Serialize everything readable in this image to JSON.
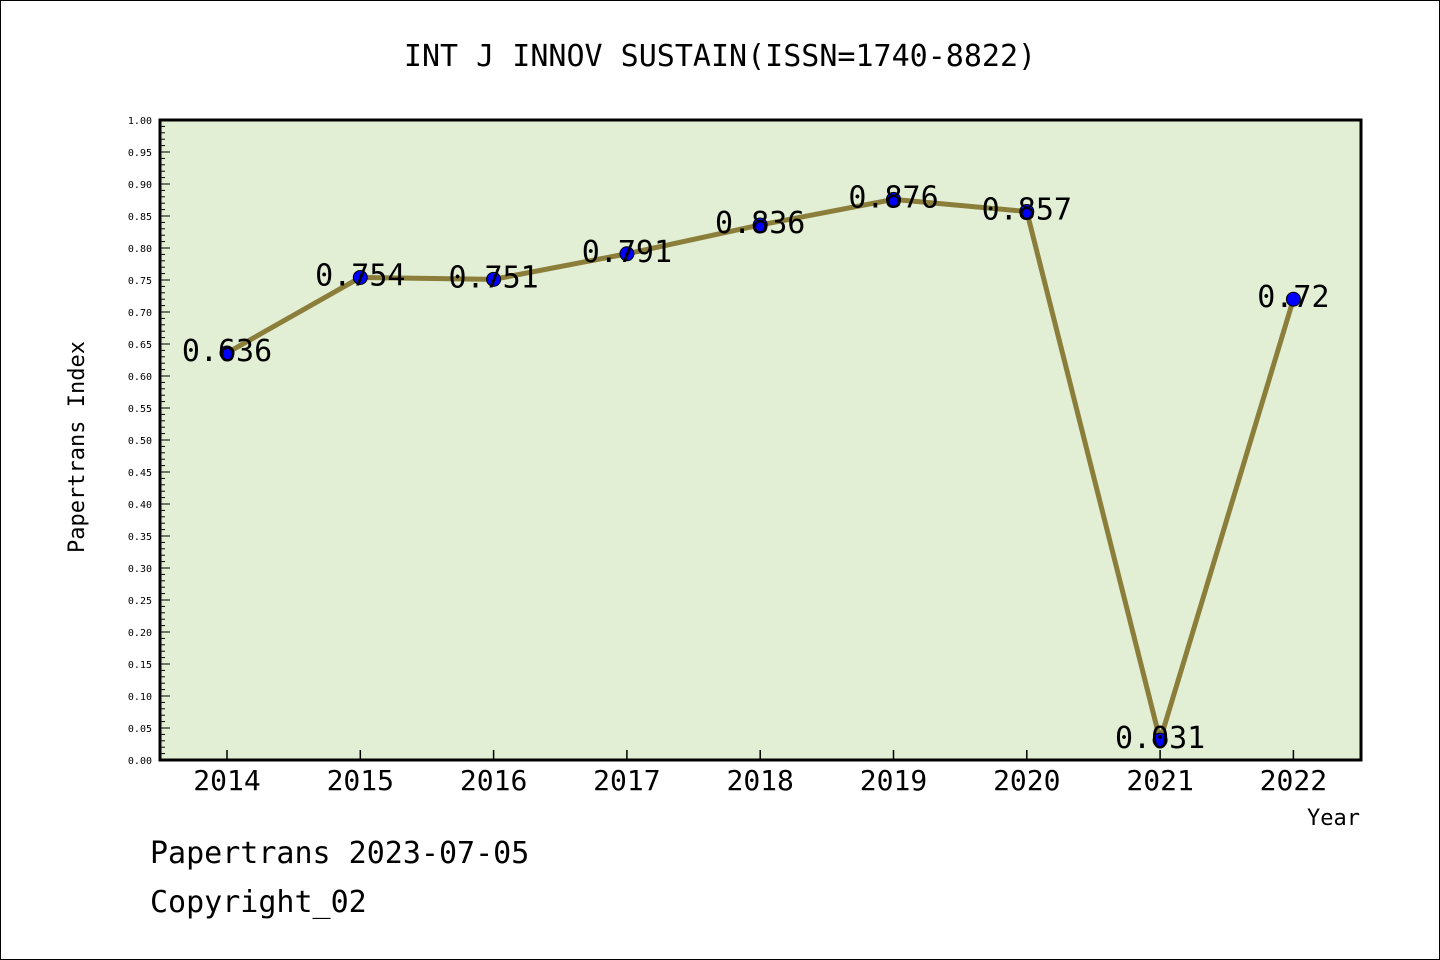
{
  "chart_data": {
    "type": "line",
    "title": "INT J INNOV SUSTAIN(ISSN=1740-8822)",
    "xlabel": "Year",
    "ylabel": "Papertrans Index",
    "categories": [
      "2014",
      "2015",
      "2016",
      "2017",
      "2018",
      "2019",
      "2020",
      "2021",
      "2022"
    ],
    "series": [
      {
        "values": [
          0.636,
          0.754,
          0.751,
          0.791,
          0.836,
          0.876,
          0.857,
          0.031,
          0.72
        ]
      }
    ],
    "data_labels": [
      "0.636",
      "0.754",
      "0.751",
      "0.791",
      "0.836",
      "0.876",
      "0.857",
      "0.031",
      "0.72"
    ],
    "ylim": [
      0,
      1.0
    ],
    "y_ticks": [
      "0.00",
      "0.05",
      "0.10",
      "0.15",
      "0.20",
      "0.25",
      "0.30",
      "0.35",
      "0.40",
      "0.45",
      "0.50",
      "0.55",
      "0.60",
      "0.65",
      "0.70",
      "0.75",
      "0.80",
      "0.85",
      "0.90",
      "0.95",
      "1.00"
    ],
    "grid": false,
    "colors": {
      "plot_background": "#e2efd5",
      "line": "#8b7d3a",
      "marker": "#0000ff"
    }
  },
  "footer": {
    "line1": "Papertrans 2023-07-05",
    "line2": "Copyright_02"
  }
}
